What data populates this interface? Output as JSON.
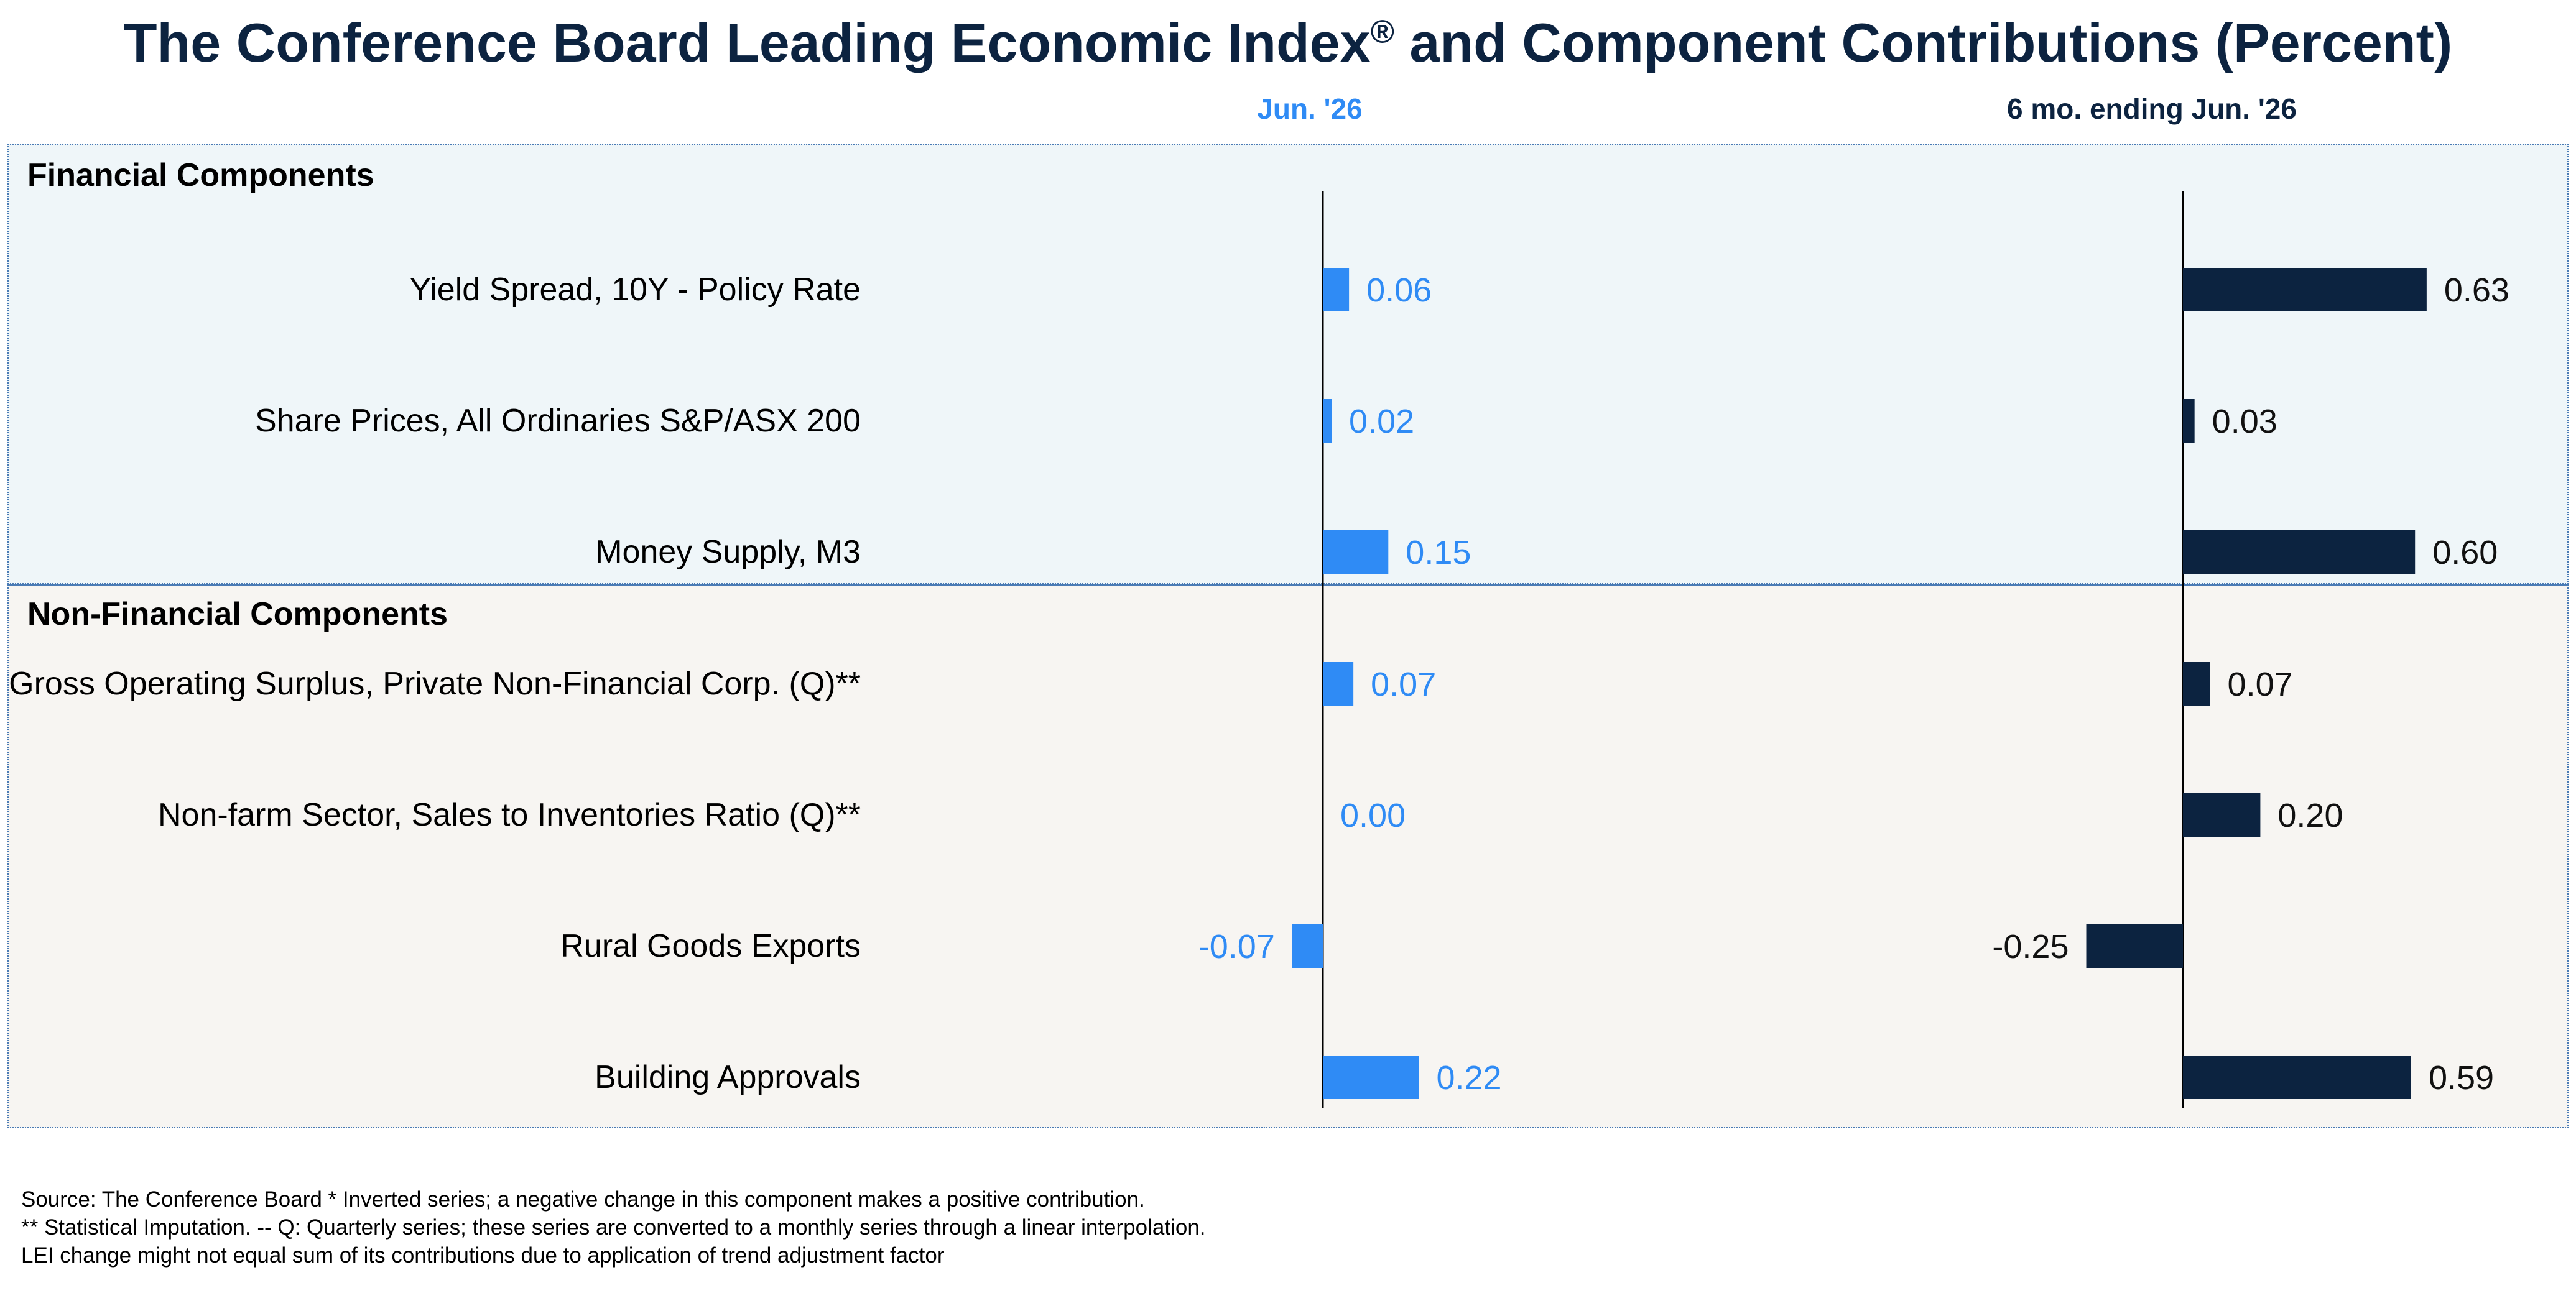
{
  "title": "The Conference Board Leading Economic Index",
  "title_mark": "®",
  "title_suffix": " and Component Contributions (Percent)",
  "colors": {
    "one_month": "#2f8bf5",
    "six_month": "#0c2340",
    "fin_bg": "#eff6f9",
    "nonfin_bg": "#f7f5f2"
  },
  "sections": {
    "financial": "Financial Components",
    "non_financial": "Non-Financial Components"
  },
  "rows": [
    {
      "label": "Yield Spread, 10Y - Policy Rate",
      "section": "financial"
    },
    {
      "label": "Share Prices, All Ordinaries S&P/ASX 200",
      "section": "financial"
    },
    {
      "label": "Money Supply, M3",
      "section": "financial"
    },
    {
      "label": "Gross Operating Surplus, Private Non-Financial Corp. (Q)**",
      "section": "non_financial"
    },
    {
      "label": "Non-farm Sector, Sales to Inventories Ratio (Q)**",
      "section": "non_financial"
    },
    {
      "label": "Rural Goods Exports",
      "section": "non_financial"
    },
    {
      "label": "Building Approvals",
      "section": "non_financial"
    }
  ],
  "chart_data": [
    {
      "type": "bar",
      "orientation": "horizontal",
      "title": "Jun. '26",
      "categories": [
        "Yield Spread, 10Y - Policy Rate",
        "Share Prices, All Ordinaries S&P/ASX 200",
        "Money Supply, M3",
        "Gross Operating Surplus, Private Non-Financial Corp. (Q)**",
        "Non-farm Sector, Sales to Inventories Ratio (Q)**",
        "Rural Goods Exports",
        "Building Approvals"
      ],
      "values": [
        0.06,
        0.02,
        0.15,
        0.07,
        0.0,
        -0.07,
        0.22
      ],
      "value_labels": [
        "0.06",
        "0.02",
        "0.15",
        "0.07",
        "0.00",
        "-0.07",
        "0.22"
      ],
      "color": "#2f8bf5",
      "grid": false
    },
    {
      "type": "bar",
      "orientation": "horizontal",
      "title": "6 mo. ending Jun. '26",
      "categories": [
        "Yield Spread, 10Y - Policy Rate",
        "Share Prices, All Ordinaries S&P/ASX 200",
        "Money Supply, M3",
        "Gross Operating Surplus, Private Non-Financial Corp. (Q)**",
        "Non-farm Sector, Sales to Inventories Ratio (Q)**",
        "Rural Goods Exports",
        "Building Approvals"
      ],
      "values": [
        0.63,
        0.03,
        0.6,
        0.07,
        0.2,
        -0.25,
        0.59
      ],
      "value_labels": [
        "0.63",
        "0.03",
        "0.60",
        "0.07",
        "0.20",
        "-0.25",
        "0.59"
      ],
      "color": "#0c2340",
      "grid": false
    }
  ],
  "footnotes": [
    "Source: The Conference Board *  Inverted series; a negative change in this component makes a positive contribution.",
    "**  Statistical Imputation. -- Q: Quarterly series; these series are converted to a monthly series through a linear interpolation.",
    "LEI change might not equal sum of its contributions due to application of trend adjustment factor"
  ]
}
